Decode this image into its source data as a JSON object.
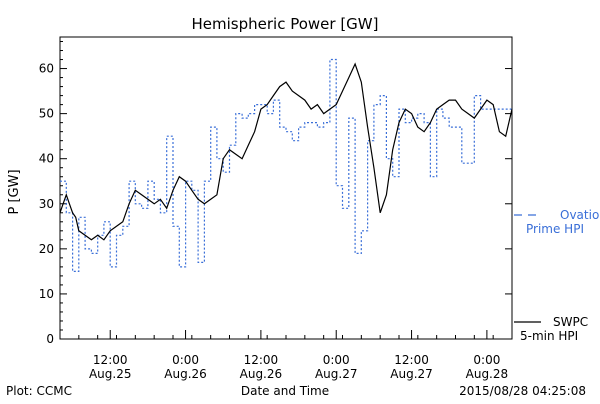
{
  "chart_data": {
    "type": "line",
    "title": "Hemispheric Power [GW]",
    "ylabel": "P [GW]",
    "xlabel": "Date and Time",
    "ylim": [
      0,
      67
    ],
    "xlim": [
      0,
      72
    ],
    "yticks": [
      0,
      10,
      20,
      30,
      40,
      50,
      60
    ],
    "xticks": [
      {
        "x": 8,
        "line1": "12:00",
        "line2": "Aug.25"
      },
      {
        "x": 20,
        "line1": "0:00",
        "line2": "Aug.26"
      },
      {
        "x": 32,
        "line1": "12:00",
        "line2": "Aug.26"
      },
      {
        "x": 44,
        "line1": "0:00",
        "line2": "Aug.27"
      },
      {
        "x": 56,
        "line1": "12:00",
        "line2": "Aug.27"
      },
      {
        "x": 68,
        "line1": "0:00",
        "line2": "Aug.28"
      }
    ],
    "grid": false,
    "series": [
      {
        "name": "Ovation Prime HPI",
        "legend_line1": "Ovation",
        "legend_line2": "Prime HPI",
        "color": "#3a6fd8",
        "style": "dashed-step",
        "x": [
          0,
          1,
          2,
          3,
          4,
          5,
          6,
          7,
          8,
          9,
          10,
          11,
          12,
          13,
          14,
          15,
          16,
          17,
          18,
          19,
          20,
          21,
          22,
          23,
          24,
          25,
          26,
          27,
          28,
          29,
          30,
          31,
          32,
          33,
          34,
          35,
          36,
          37,
          38,
          39,
          40,
          41,
          42,
          43,
          44,
          45,
          46,
          47,
          48,
          49,
          50,
          51,
          52,
          53,
          54,
          55,
          56,
          57,
          58,
          59,
          60,
          61,
          62,
          63,
          64,
          65,
          66,
          67,
          68,
          69,
          70,
          71
        ],
        "y": [
          35,
          28,
          15,
          27,
          20,
          19,
          23,
          26,
          16,
          23,
          25,
          35,
          30,
          29,
          35,
          31,
          28,
          45,
          25,
          16,
          35,
          33,
          17,
          35,
          47,
          40,
          37,
          43,
          50,
          49,
          50,
          52,
          52,
          50,
          53,
          47,
          46,
          44,
          47,
          48,
          48,
          47,
          48,
          62,
          34,
          29,
          49,
          19,
          24,
          44,
          52,
          54,
          40,
          36,
          51,
          48,
          49,
          50,
          48,
          36,
          51,
          49,
          47,
          47,
          39,
          39,
          54,
          51,
          51,
          51,
          51,
          51
        ]
      },
      {
        "name": "SWPC 5-min HPI",
        "legend_line1": "SWPC",
        "legend_line2": "5-min HPI",
        "color": "#000000",
        "style": "solid",
        "x": [
          0,
          0.5,
          1,
          1.5,
          2,
          2.5,
          3,
          4,
          5,
          6,
          7,
          8,
          9,
          10,
          11,
          12,
          13,
          14,
          15,
          16,
          17,
          18,
          19,
          20,
          21,
          22,
          23,
          24,
          25,
          26,
          27,
          28,
          29,
          30,
          31,
          32,
          33,
          34,
          35,
          36,
          37,
          38,
          39,
          40,
          41,
          42,
          43,
          44,
          45,
          46,
          47,
          48,
          49,
          50,
          51,
          52,
          53,
          54,
          55,
          56,
          57,
          58,
          59,
          60,
          61,
          62,
          63,
          64,
          65,
          66,
          67,
          68,
          69,
          70,
          71,
          72
        ],
        "y": [
          28,
          30,
          32,
          30,
          28,
          27,
          24,
          23,
          22,
          23,
          22,
          24,
          25,
          26,
          30,
          33,
          32,
          31,
          30,
          31,
          29,
          33,
          36,
          35,
          33,
          31,
          30,
          31,
          32,
          40,
          42,
          41,
          40,
          43,
          46,
          51,
          52,
          54,
          56,
          57,
          55,
          54,
          53,
          51,
          52,
          50,
          51,
          52,
          55,
          58,
          61,
          57,
          47,
          38,
          28,
          32,
          42,
          48,
          51,
          50,
          47,
          46,
          48,
          51,
          52,
          53,
          53,
          51,
          50,
          49,
          51,
          53,
          52,
          46,
          45,
          51
        ]
      }
    ]
  },
  "footer": {
    "left": "Plot: CCMC",
    "right": "2015/08/28 04:25:08"
  }
}
